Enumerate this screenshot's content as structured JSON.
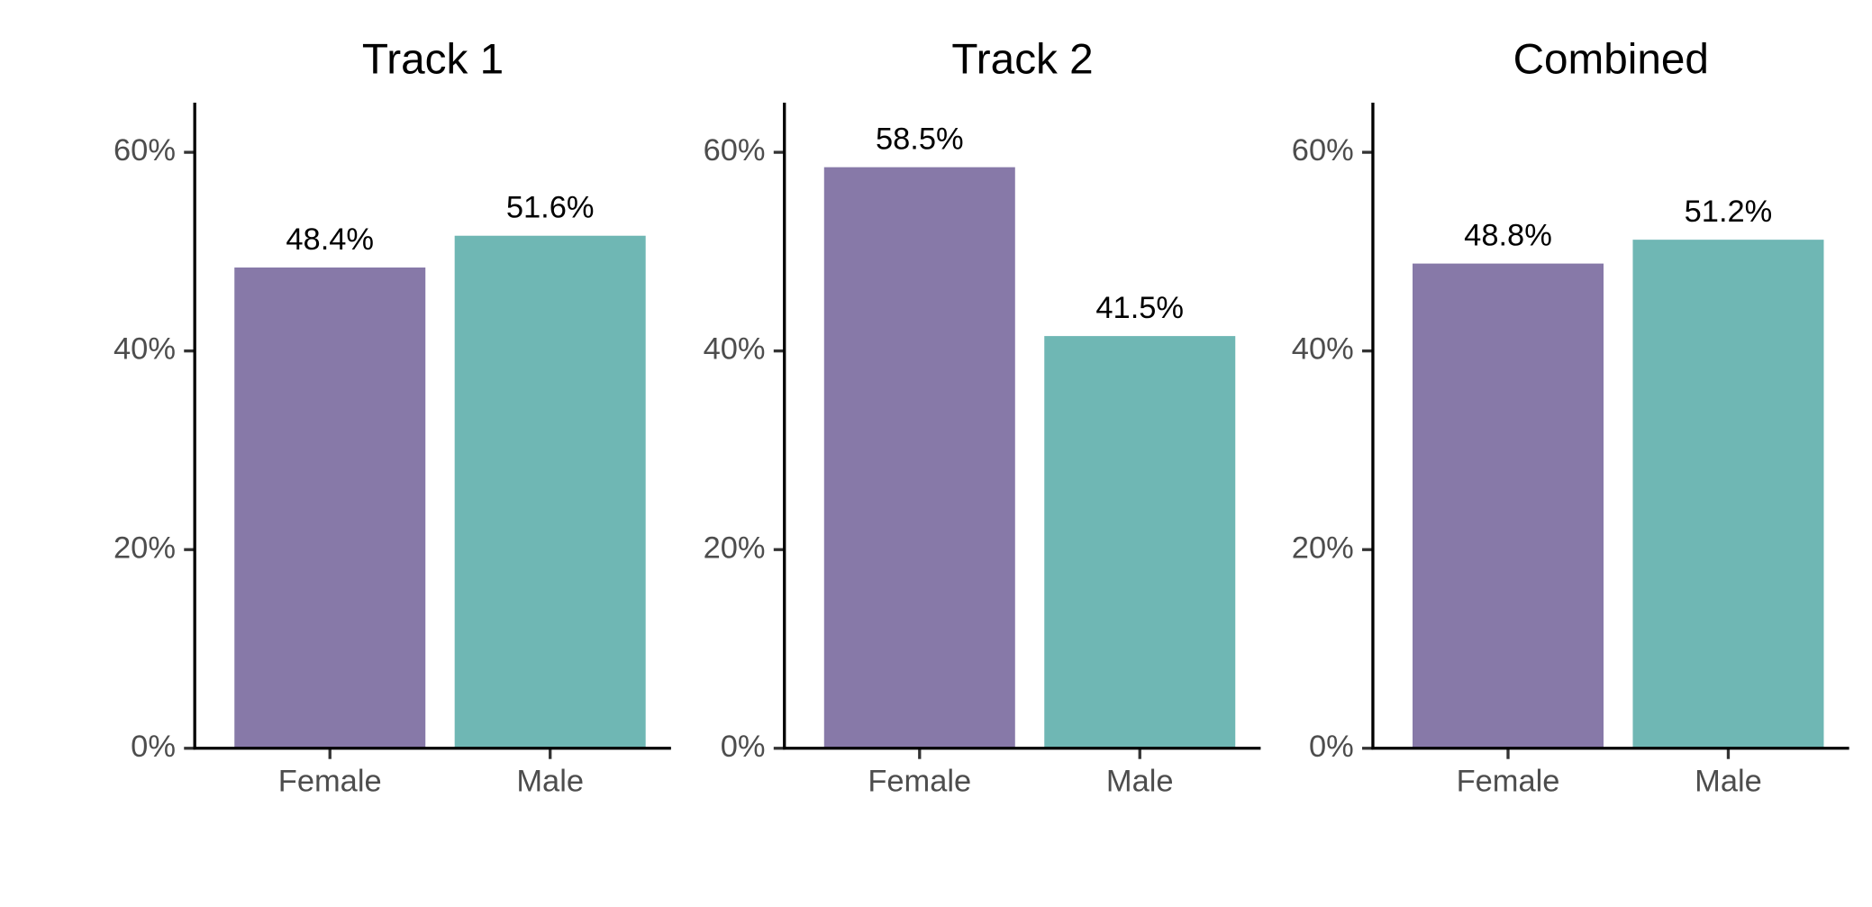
{
  "chart_data": [
    {
      "type": "bar",
      "title": "Track 1",
      "categories": [
        "Female",
        "Male"
      ],
      "values": [
        48.4,
        51.6
      ],
      "value_labels": [
        "48.4%",
        "51.6%"
      ],
      "colors": [
        "#8779a8",
        "#6fb7b4"
      ],
      "ylim": [
        0,
        65
      ],
      "yticks": [
        {
          "value": 0,
          "label": "0%"
        },
        {
          "value": 20,
          "label": "20%"
        },
        {
          "value": 40,
          "label": "40%"
        },
        {
          "value": 60,
          "label": "60%"
        }
      ]
    },
    {
      "type": "bar",
      "title": "Track 2",
      "categories": [
        "Female",
        "Male"
      ],
      "values": [
        58.5,
        41.5
      ],
      "value_labels": [
        "58.5%",
        "41.5%"
      ],
      "colors": [
        "#8779a8",
        "#6fb7b4"
      ],
      "ylim": [
        0,
        65
      ],
      "yticks": [
        {
          "value": 0,
          "label": "0%"
        },
        {
          "value": 20,
          "label": "20%"
        },
        {
          "value": 40,
          "label": "40%"
        },
        {
          "value": 60,
          "label": "60%"
        }
      ]
    },
    {
      "type": "bar",
      "title": "Combined",
      "categories": [
        "Female",
        "Male"
      ],
      "values": [
        48.8,
        51.2
      ],
      "value_labels": [
        "48.8%",
        "51.2%"
      ],
      "colors": [
        "#8779a8",
        "#6fb7b4"
      ],
      "ylim": [
        0,
        65
      ],
      "yticks": [
        {
          "value": 0,
          "label": "0%"
        },
        {
          "value": 20,
          "label": "20%"
        },
        {
          "value": 40,
          "label": "40%"
        },
        {
          "value": 60,
          "label": "60%"
        }
      ]
    }
  ]
}
